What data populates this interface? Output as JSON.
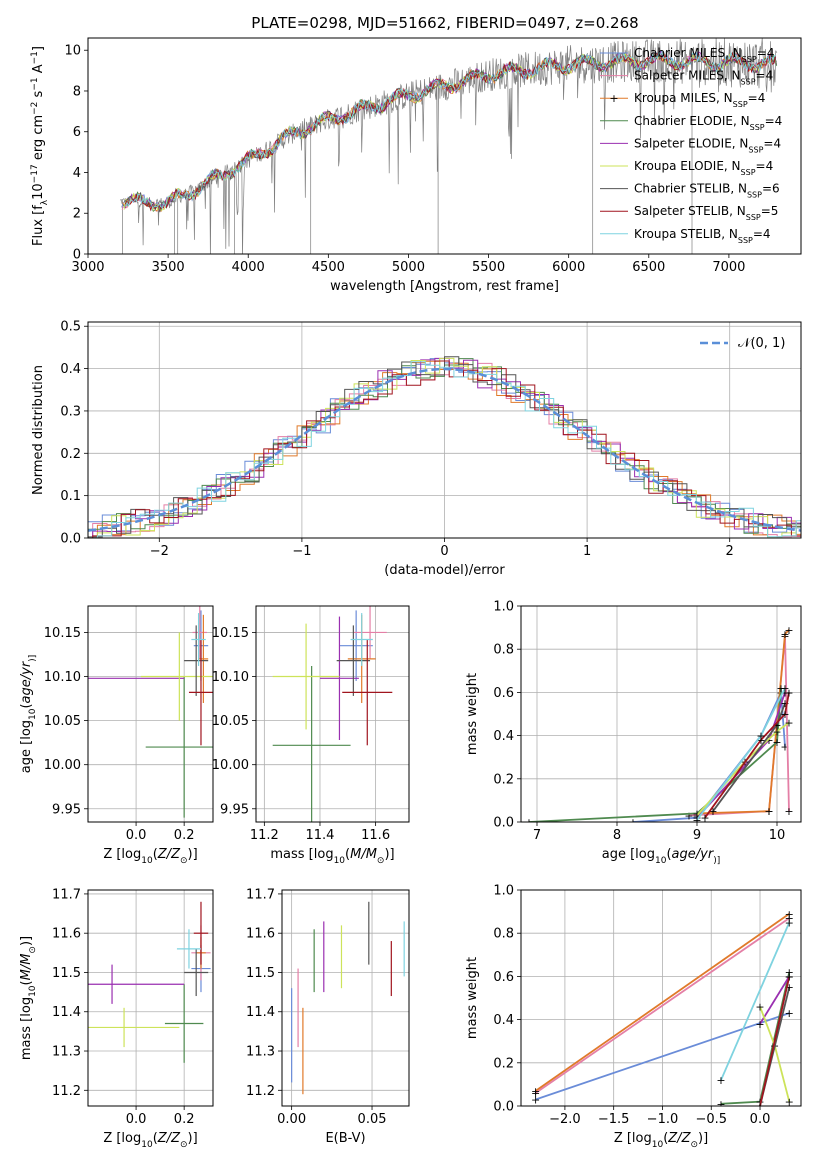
{
  "figure": {
    "title": "PLATE=0298, MJD=51662, FIBERID=0497, z=0.268"
  },
  "models": [
    {
      "name": "Chabrier MILES, N_SSP=4",
      "label": "Chabrier MILES, N",
      "sub": "SSP",
      "tail": "=4",
      "color": "#6a8cd8"
    },
    {
      "name": "Salpeter MILES, N_SSP=4",
      "label": "Salpeter MILES, N",
      "sub": "SSP",
      "tail": "=4",
      "color": "#e47fa6"
    },
    {
      "name": "Kroupa MILES, N_SSP=4",
      "label": "Kroupa MILES, N",
      "sub": "SSP",
      "tail": "=4",
      "color": "#e07a2a"
    },
    {
      "name": "Chabrier ELODIE, N_SSP=4",
      "label": "Chabrier ELODIE, N",
      "sub": "SSP",
      "tail": "=4",
      "color": "#4f8a4f"
    },
    {
      "name": "Salpeter ELODIE, N_SSP=4",
      "label": "Salpeter ELODIE, N",
      "sub": "SSP",
      "tail": "=4",
      "color": "#9a2fb0"
    },
    {
      "name": "Kroupa ELODIE, N_SSP=4",
      "label": "Kroupa ELODIE, N",
      "sub": "SSP",
      "tail": "=4",
      "color": "#cde35a"
    },
    {
      "name": "Chabrier STELIB, N_SSP=6",
      "label": "Chabrier STELIB, N",
      "sub": "SSP",
      "tail": "=6",
      "color": "#555555"
    },
    {
      "name": "Salpeter STELIB, N_SSP=5",
      "label": "Salpeter STELIB, N",
      "sub": "SSP",
      "tail": "=5",
      "color": "#a0141e"
    },
    {
      "name": "Kroupa STELIB, N_SSP=4",
      "label": "Kroupa STELIB, N",
      "sub": "SSP",
      "tail": "=4",
      "color": "#7fd3e0"
    }
  ],
  "chart_data": [
    {
      "id": "spectrum",
      "type": "line",
      "xlabel": "wavelength [Angstrom, rest frame]",
      "ylabel_parts": [
        "Flux [f",
        "λ",
        "10",
        "−17",
        " erg cm",
        "−2",
        " s",
        "−1",
        " A",
        "−1",
        "]"
      ],
      "xlim": [
        3000,
        7450
      ],
      "ylim": [
        0,
        10.6
      ],
      "xticks": [
        3000,
        3500,
        4000,
        4500,
        5000,
        5500,
        6000,
        6500,
        7000
      ],
      "yticks": [
        0,
        2,
        4,
        6,
        8,
        10
      ],
      "grid": false,
      "legend": "upper-right",
      "data_color": "#7f7f7f",
      "data_range": [
        3200,
        7300
      ],
      "continuum": [
        [
          3200,
          2.6
        ],
        [
          3500,
          2.5
        ],
        [
          3700,
          3.3
        ],
        [
          4000,
          4.6
        ],
        [
          4300,
          6.0
        ],
        [
          4500,
          6.6
        ],
        [
          5000,
          7.8
        ],
        [
          5500,
          8.8
        ],
        [
          6000,
          9.3
        ],
        [
          6500,
          9.5
        ],
        [
          7000,
          9.4
        ],
        [
          7300,
          9.3
        ]
      ]
    },
    {
      "id": "residual-histogram",
      "type": "area",
      "xlabel": "(data-model)/error",
      "ylabel": "Normed distribution",
      "xlim": [
        -2.5,
        2.5
      ],
      "ylim": [
        0,
        0.51
      ],
      "xticks": [
        -2,
        -1,
        0,
        1,
        2
      ],
      "xtick_labels": [
        "−2",
        "−1",
        "0",
        "1",
        "2"
      ],
      "yticks": [
        0.0,
        0.1,
        0.2,
        0.3,
        0.4,
        0.5
      ],
      "ytick_labels": [
        "0.0",
        "0.1",
        "0.2",
        "0.3",
        "0.4",
        "0.5"
      ],
      "grid": true,
      "legend": "upper-right",
      "gaussian_label": "𝒩(0, 1)",
      "gaussian_color": "#5a8fd8",
      "bin_width": 0.1
    },
    {
      "id": "age-vs-metallicity",
      "type": "scatter",
      "xlabel_parts": [
        "Z [log",
        "10",
        "(",
        "Z/Z",
        "⊙",
        ")]"
      ],
      "ylabel_parts": [
        "age  [log",
        "10",
        "(",
        "age/yr",
        ")]"
      ],
      "xlim": [
        -0.2,
        0.32
      ],
      "ylim": [
        9.935,
        10.18
      ],
      "xticks": [
        0.0,
        0.2
      ],
      "xtick_labels": [
        "0.0",
        "0.2"
      ],
      "yticks": [
        9.95,
        10.0,
        10.05,
        10.1,
        10.15
      ],
      "ytick_labels": [
        "9.95",
        "10.00",
        "10.05",
        "10.10",
        "10.15"
      ],
      "grid": true,
      "points": [
        {
          "x": 0.27,
          "y": 10.135,
          "xerr": 0.03,
          "yerr": 0.04
        },
        {
          "x": 0.265,
          "y": 10.15,
          "xerr": 0.03,
          "yerr": 0.03
        },
        {
          "x": 0.28,
          "y": 10.12,
          "xerr": 0.02,
          "yerr": 0.05
        },
        {
          "x": 0.2,
          "y": 10.02,
          "xerr": 0.16,
          "yerr": 0.08
        },
        {
          "x": -0.0,
          "y": 10.098,
          "xerr": 0.2,
          "yerr": 0.0
        },
        {
          "x": 0.18,
          "y": 10.1,
          "xerr": 0.16,
          "yerr": 0.05
        },
        {
          "x": 0.25,
          "y": 10.118,
          "xerr": 0.05,
          "yerr": 0.04
        },
        {
          "x": 0.27,
          "y": 10.082,
          "xerr": 0.05,
          "yerr": 0.06
        },
        {
          "x": 0.26,
          "y": 10.142,
          "xerr": 0.03,
          "yerr": 0.03
        }
      ]
    },
    {
      "id": "age-vs-mass",
      "type": "scatter",
      "xlabel_parts": [
        "mass [log",
        "10",
        "(",
        "M/M",
        "⊙",
        ")]"
      ],
      "xlim": [
        11.17,
        11.72
      ],
      "ylim": [
        9.935,
        10.18
      ],
      "xticks": [
        11.2,
        11.4,
        11.6
      ],
      "xtick_labels": [
        "11.2",
        "11.4",
        "11.6"
      ],
      "yticks": [
        9.95,
        10.0,
        10.05,
        10.1,
        10.15
      ],
      "ytick_labels": [
        "9.95",
        "10.00",
        "10.05",
        "10.10",
        "10.15"
      ],
      "grid": true,
      "points": [
        {
          "x": 11.53,
          "y": 10.135,
          "xerr": 0.06,
          "yerr": 0.04
        },
        {
          "x": 11.58,
          "y": 10.15,
          "xerr": 0.06,
          "yerr": 0.03
        },
        {
          "x": 11.55,
          "y": 10.12,
          "xerr": 0.05,
          "yerr": 0.05
        },
        {
          "x": 11.37,
          "y": 10.022,
          "xerr": 0.14,
          "yerr": 0.09
        },
        {
          "x": 11.47,
          "y": 10.098,
          "xerr": 0.07,
          "yerr": 0.07
        },
        {
          "x": 11.35,
          "y": 10.1,
          "xerr": 0.12,
          "yerr": 0.06
        },
        {
          "x": 11.52,
          "y": 10.118,
          "xerr": 0.06,
          "yerr": 0.04
        },
        {
          "x": 11.57,
          "y": 10.082,
          "xerr": 0.09,
          "yerr": 0.06
        },
        {
          "x": 11.55,
          "y": 10.142,
          "xerr": 0.04,
          "yerr": 0.03
        }
      ]
    },
    {
      "id": "mass-weight-vs-age",
      "type": "line",
      "xlabel_parts": [
        "age  [log",
        "10",
        "(",
        "age/yr",
        ")]"
      ],
      "ylabel": "mass weight",
      "xlim": [
        6.8,
        10.3
      ],
      "ylim": [
        0,
        1.0
      ],
      "xticks": [
        7,
        8,
        9,
        10
      ],
      "xtick_labels": [
        "7",
        "8",
        "9",
        "10"
      ],
      "yticks": [
        0.0,
        0.2,
        0.4,
        0.6,
        0.8,
        1.0
      ],
      "ytick_labels": [
        "0.0",
        "0.2",
        "0.4",
        "0.6",
        "0.8",
        "1.0"
      ],
      "grid": true,
      "series": [
        {
          "x": [
            8.2,
            9.0,
            9.8,
            10.05,
            10.1
          ],
          "y": [
            0.0,
            0.02,
            0.4,
            0.6,
            0.35
          ]
        },
        {
          "x": [
            8.9,
            9.9,
            10.1,
            10.15
          ],
          "y": [
            0.03,
            0.05,
            0.86,
            0.05
          ]
        },
        {
          "x": [
            9.0,
            9.9,
            10.1,
            10.15
          ],
          "y": [
            0.04,
            0.05,
            0.87,
            0.89
          ]
        },
        {
          "x": [
            6.9,
            9.0,
            10.0,
            10.05
          ],
          "y": [
            0.0,
            0.04,
            0.37,
            0.62
          ]
        },
        {
          "x": [
            9.0,
            9.9,
            10.1
          ],
          "y": [
            0.02,
            0.38,
            0.6
          ]
        },
        {
          "x": [
            9.0,
            9.6,
            10.0,
            10.15
          ],
          "y": [
            0.03,
            0.28,
            0.42,
            0.46
          ]
        },
        {
          "x": [
            9.2,
            10.0,
            10.1
          ],
          "y": [
            0.05,
            0.45,
            0.55
          ]
        },
        {
          "x": [
            9.1,
            9.8,
            10.1,
            10.15
          ],
          "y": [
            0.02,
            0.38,
            0.5,
            0.6
          ]
        },
        {
          "x": [
            9.0,
            9.8,
            10.1
          ],
          "y": [
            0.01,
            0.4,
            0.62
          ]
        }
      ]
    },
    {
      "id": "mass-vs-metallicity",
      "type": "scatter",
      "xlabel_parts": [
        "Z [log",
        "10",
        "(",
        "Z/Z",
        "⊙",
        ")]"
      ],
      "ylabel_parts": [
        "mass [log",
        "10",
        "(",
        "M/M",
        "⊙",
        ")]"
      ],
      "xlim": [
        -0.2,
        0.32
      ],
      "ylim": [
        11.16,
        11.71
      ],
      "xticks": [
        0.0,
        0.2
      ],
      "xtick_labels": [
        "0.0",
        "0.2"
      ],
      "yticks": [
        11.2,
        11.3,
        11.4,
        11.5,
        11.6,
        11.7
      ],
      "ytick_labels": [
        "11.2",
        "11.3",
        "11.4",
        "11.5",
        "11.6",
        "11.7"
      ],
      "grid": true,
      "points": [
        {
          "x": 0.27,
          "y": 11.51,
          "xerr": 0.04,
          "yerr": 0.06
        },
        {
          "x": 0.27,
          "y": 11.55,
          "xerr": 0.04,
          "yerr": 0.07
        },
        {
          "x": 0.27,
          "y": 11.55,
          "xerr": 0.02,
          "yerr": 0.04
        },
        {
          "x": 0.2,
          "y": 11.37,
          "xerr": 0.08,
          "yerr": 0.1
        },
        {
          "x": -0.1,
          "y": 11.47,
          "xerr": 0.3,
          "yerr": 0.05
        },
        {
          "x": -0.05,
          "y": 11.36,
          "xerr": 0.23,
          "yerr": 0.05
        },
        {
          "x": 0.25,
          "y": 11.5,
          "xerr": 0.05,
          "yerr": 0.06
        },
        {
          "x": 0.27,
          "y": 11.6,
          "xerr": 0.03,
          "yerr": 0.08
        },
        {
          "x": 0.22,
          "y": 11.56,
          "xerr": 0.05,
          "yerr": 0.05
        }
      ]
    },
    {
      "id": "mass-vs-reddening",
      "type": "scatter",
      "xlabel": "E(B-V)",
      "xlim": [
        -0.006,
        0.073
      ],
      "ylim": [
        11.16,
        11.71
      ],
      "xticks": [
        0.0,
        0.05
      ],
      "xtick_labels": [
        "0.00",
        "0.05"
      ],
      "yticks": [
        11.2,
        11.3,
        11.4,
        11.5,
        11.6,
        11.7
      ],
      "ytick_labels": [
        "11.2",
        "11.3",
        "11.4",
        "11.5",
        "11.6",
        "11.7"
      ],
      "grid": true,
      "points": [
        {
          "x": 0.0,
          "y": 11.34,
          "xerr": 0,
          "yerr": 0.12
        },
        {
          "x": 0.004,
          "y": 11.41,
          "xerr": 0,
          "yerr": 0.1
        },
        {
          "x": 0.007,
          "y": 11.3,
          "xerr": 0,
          "yerr": 0.11
        },
        {
          "x": 0.014,
          "y": 11.53,
          "xerr": 0,
          "yerr": 0.08
        },
        {
          "x": 0.02,
          "y": 11.54,
          "xerr": 0,
          "yerr": 0.09
        },
        {
          "x": 0.031,
          "y": 11.54,
          "xerr": 0,
          "yerr": 0.08
        },
        {
          "x": 0.048,
          "y": 11.6,
          "xerr": 0,
          "yerr": 0.08
        },
        {
          "x": 0.062,
          "y": 11.51,
          "xerr": 0,
          "yerr": 0.07
        },
        {
          "x": 0.07,
          "y": 11.56,
          "xerr": 0,
          "yerr": 0.07
        }
      ]
    },
    {
      "id": "mass-weight-vs-metallicity",
      "type": "line",
      "xlabel_parts": [
        "Z [log",
        "10",
        "(",
        "Z/Z",
        "⊙",
        ")]"
      ],
      "ylabel": "mass weight",
      "xlim": [
        -2.45,
        0.42
      ],
      "ylim": [
        0,
        1.0
      ],
      "xticks": [
        -2.0,
        -1.5,
        -1.0,
        -0.5,
        0.0
      ],
      "xtick_labels": [
        "−2.0",
        "−1.5",
        "−1.0",
        "−0.5",
        "0.0"
      ],
      "yticks": [
        0.0,
        0.2,
        0.4,
        0.6,
        0.8,
        1.0
      ],
      "ytick_labels": [
        "0.0",
        "0.2",
        "0.4",
        "0.6",
        "0.8",
        "1.0"
      ],
      "grid": true,
      "series": [
        {
          "x": [
            -2.3,
            0.3
          ],
          "y": [
            0.03,
            0.43
          ]
        },
        {
          "x": [
            -2.3,
            0.3
          ],
          "y": [
            0.06,
            0.87
          ]
        },
        {
          "x": [
            -2.3,
            0.3
          ],
          "y": [
            0.07,
            0.89
          ]
        },
        {
          "x": [
            -0.4,
            0.0,
            0.3
          ],
          "y": [
            0.01,
            0.02,
            0.62
          ]
        },
        {
          "x": [
            0.0,
            0.3
          ],
          "y": [
            0.38,
            0.6
          ]
        },
        {
          "x": [
            0.0,
            0.15,
            0.3
          ],
          "y": [
            0.46,
            0.28,
            0.02
          ]
        },
        {
          "x": [
            0.0,
            0.3
          ],
          "y": [
            0.0,
            0.55
          ]
        },
        {
          "x": [
            0.0,
            0.3
          ],
          "y": [
            0.0,
            0.6
          ]
        },
        {
          "x": [
            -0.4,
            0.3
          ],
          "y": [
            0.12,
            0.85
          ]
        }
      ]
    }
  ]
}
